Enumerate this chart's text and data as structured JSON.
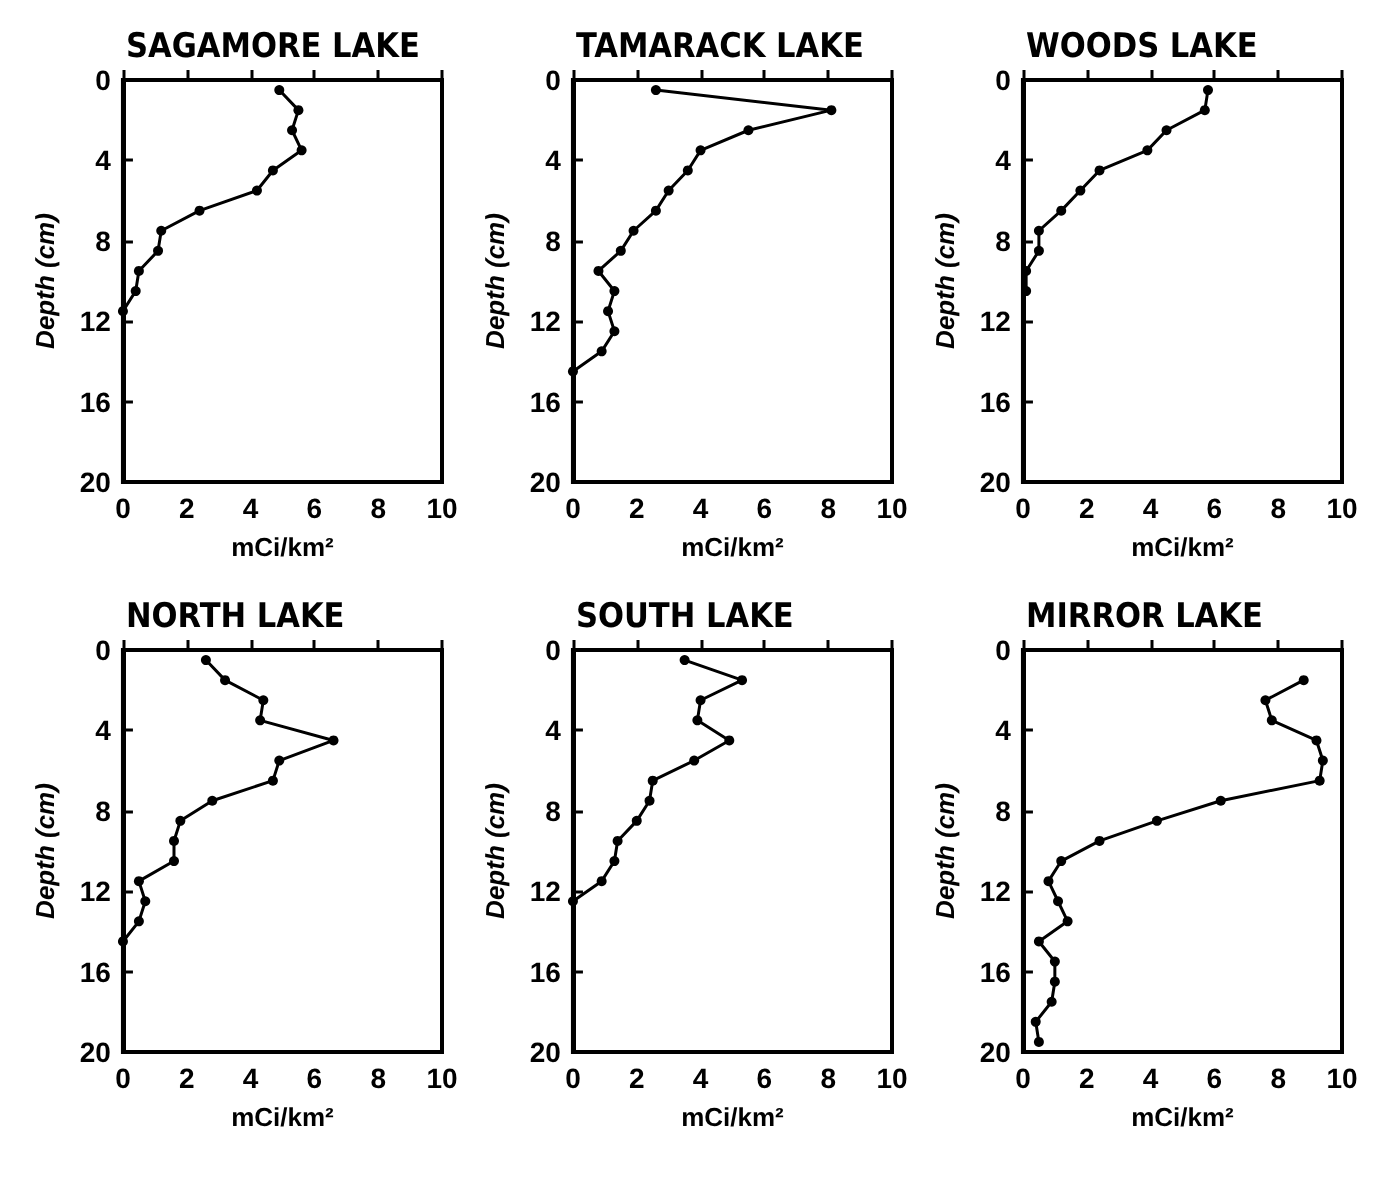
{
  "chart_data": [
    {
      "type": "line",
      "title": "SAGAMORE LAKE",
      "xlabel": "mCi/km²",
      "ylabel": "Depth (cm)",
      "xlim": [
        0,
        10
      ],
      "xticks": [
        0,
        2,
        4,
        6,
        8,
        10
      ],
      "ylim": [
        20,
        0
      ],
      "yticks": [
        0,
        4,
        8,
        12,
        16,
        20
      ],
      "grid": false,
      "marker": "circle",
      "line_style": "solid",
      "series": [
        {
          "color": "#000000",
          "x": [
            4.9,
            5.5,
            5.3,
            5.6,
            4.7,
            4.2,
            2.4,
            1.2,
            1.1,
            0.5,
            0.4,
            0
          ],
          "values": [
            0.5,
            1.5,
            2.5,
            3.5,
            4.5,
            5.5,
            6.5,
            7.5,
            8.5,
            9.5,
            10.5,
            11.5
          ]
        }
      ]
    },
    {
      "type": "line",
      "title": "TAMARACK LAKE",
      "xlabel": "mCi/km²",
      "ylabel": "Depth (cm)",
      "xlim": [
        0,
        10
      ],
      "xticks": [
        0,
        2,
        4,
        6,
        8,
        10
      ],
      "ylim": [
        20,
        0
      ],
      "yticks": [
        0,
        4,
        8,
        12,
        16,
        20
      ],
      "grid": false,
      "marker": "circle",
      "line_style": "solid",
      "series": [
        {
          "color": "#000000",
          "x": [
            2.6,
            8.1,
            5.5,
            4.0,
            3.6,
            3.0,
            2.6,
            1.9,
            1.5,
            0.8,
            1.3,
            1.1,
            1.3,
            0.9,
            0
          ],
          "values": [
            0.5,
            1.5,
            2.5,
            3.5,
            4.5,
            5.5,
            6.5,
            7.5,
            8.5,
            9.5,
            10.5,
            11.5,
            12.5,
            13.5,
            14.5
          ]
        }
      ]
    },
    {
      "type": "line",
      "title": "WOODS LAKE",
      "xlabel": "mCi/km²",
      "ylabel": "Depth (cm)",
      "xlim": [
        0,
        10
      ],
      "xticks": [
        0,
        2,
        4,
        6,
        8,
        10
      ],
      "ylim": [
        20,
        0
      ],
      "yticks": [
        0,
        4,
        8,
        12,
        16,
        20
      ],
      "grid": false,
      "marker": "circle",
      "line_style": "solid",
      "series": [
        {
          "color": "#000000",
          "x": [
            5.8,
            5.7,
            4.5,
            3.9,
            2.4,
            1.8,
            1.2,
            0.5,
            0.5,
            0.1,
            0.1
          ],
          "values": [
            0.5,
            1.5,
            2.5,
            3.5,
            4.5,
            5.5,
            6.5,
            7.5,
            8.5,
            9.5,
            10.5
          ]
        }
      ]
    },
    {
      "type": "line",
      "title": "NORTH LAKE",
      "xlabel": "mCi/km²",
      "ylabel": "Depth (cm)",
      "xlim": [
        0,
        10
      ],
      "xticks": [
        0,
        2,
        4,
        6,
        8,
        10
      ],
      "ylim": [
        20,
        0
      ],
      "yticks": [
        0,
        4,
        8,
        12,
        16,
        20
      ],
      "grid": false,
      "marker": "circle",
      "line_style": "solid",
      "series": [
        {
          "color": "#000000",
          "x": [
            2.6,
            3.2,
            4.4,
            4.3,
            6.6,
            4.9,
            4.7,
            2.8,
            1.8,
            1.6,
            1.6,
            0.5,
            0.7,
            0.5,
            0
          ],
          "values": [
            0.5,
            1.5,
            2.5,
            3.5,
            4.5,
            5.5,
            6.5,
            7.5,
            8.5,
            9.5,
            10.5,
            11.5,
            12.5,
            13.5,
            14.5
          ]
        }
      ]
    },
    {
      "type": "line",
      "title": "SOUTH LAKE",
      "xlabel": "mCi/km²",
      "ylabel": "Depth (cm)",
      "xlim": [
        0,
        10
      ],
      "xticks": [
        0,
        2,
        4,
        6,
        8,
        10
      ],
      "ylim": [
        20,
        0
      ],
      "yticks": [
        0,
        4,
        8,
        12,
        16,
        20
      ],
      "grid": false,
      "marker": "circle",
      "line_style": "solid",
      "series": [
        {
          "color": "#000000",
          "x": [
            3.5,
            5.3,
            4.0,
            3.9,
            4.9,
            3.8,
            2.5,
            2.4,
            2.0,
            1.4,
            1.3,
            0.9,
            0
          ],
          "values": [
            0.5,
            1.5,
            2.5,
            3.5,
            4.5,
            5.5,
            6.5,
            7.5,
            8.5,
            9.5,
            10.5,
            11.5,
            12.5
          ]
        }
      ]
    },
    {
      "type": "line",
      "title": "MIRROR LAKE",
      "xlabel": "mCi/km²",
      "ylabel": "Depth (cm)",
      "xlim": [
        0,
        10
      ],
      "xticks": [
        0,
        2,
        4,
        6,
        8,
        10
      ],
      "ylim": [
        20,
        0
      ],
      "yticks": [
        0,
        4,
        8,
        12,
        16,
        20
      ],
      "grid": false,
      "marker": "circle",
      "line_style": "solid",
      "series": [
        {
          "color": "#000000",
          "x": [
            8.8,
            7.6,
            7.8,
            9.2,
            9.4,
            9.3,
            6.2,
            4.2,
            2.4,
            1.2,
            0.8,
            1.1,
            1.4,
            0.5,
            1.0,
            1.0,
            0.9,
            0.4,
            0.5
          ],
          "values": [
            1.5,
            2.5,
            3.5,
            4.5,
            5.5,
            6.5,
            7.5,
            8.5,
            9.5,
            10.5,
            11.5,
            12.5,
            13.5,
            14.5,
            15.5,
            16.5,
            17.5,
            18.5,
            19.5
          ]
        }
      ]
    }
  ]
}
